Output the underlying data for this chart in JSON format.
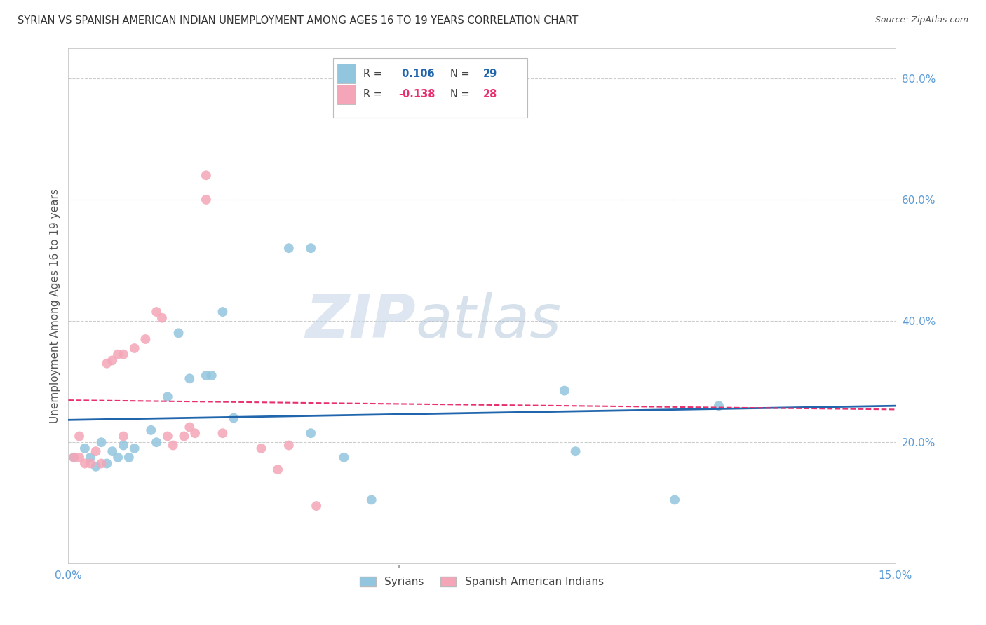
{
  "title": "SYRIAN VS SPANISH AMERICAN INDIAN UNEMPLOYMENT AMONG AGES 16 TO 19 YEARS CORRELATION CHART",
  "source": "Source: ZipAtlas.com",
  "ylabel": "Unemployment Among Ages 16 to 19 years",
  "xlim": [
    0.0,
    0.15
  ],
  "ylim": [
    0.0,
    0.85
  ],
  "yticks_right": [
    0.2,
    0.4,
    0.6,
    0.8
  ],
  "legend_syrians": "Syrians",
  "legend_spanish": "Spanish American Indians",
  "R_syrians": 0.106,
  "N_syrians": 29,
  "R_spanish": -0.138,
  "N_spanish": 28,
  "blue_color": "#92c5de",
  "blue_line_color": "#2166ac",
  "pink_color": "#f4a6b8",
  "pink_line_color": "#e8306e",
  "watermark_zip": "ZIP",
  "watermark_atlas": "atlas",
  "syrians_x": [
    0.001,
    0.003,
    0.004,
    0.005,
    0.006,
    0.007,
    0.008,
    0.009,
    0.01,
    0.011,
    0.012,
    0.015,
    0.016,
    0.018,
    0.02,
    0.022,
    0.025,
    0.026,
    0.028,
    0.03,
    0.04,
    0.044,
    0.044,
    0.05,
    0.055,
    0.09,
    0.092,
    0.11,
    0.118
  ],
  "syrians_y": [
    0.175,
    0.19,
    0.175,
    0.16,
    0.2,
    0.165,
    0.185,
    0.175,
    0.195,
    0.175,
    0.19,
    0.22,
    0.2,
    0.275,
    0.38,
    0.305,
    0.31,
    0.31,
    0.415,
    0.24,
    0.52,
    0.52,
    0.215,
    0.175,
    0.105,
    0.285,
    0.185,
    0.105,
    0.26
  ],
  "spanish_x": [
    0.001,
    0.002,
    0.002,
    0.003,
    0.004,
    0.005,
    0.006,
    0.007,
    0.008,
    0.009,
    0.01,
    0.01,
    0.012,
    0.014,
    0.016,
    0.017,
    0.018,
    0.019,
    0.021,
    0.022,
    0.023,
    0.025,
    0.025,
    0.028,
    0.035,
    0.038,
    0.04,
    0.045
  ],
  "spanish_y": [
    0.175,
    0.21,
    0.175,
    0.165,
    0.165,
    0.185,
    0.165,
    0.33,
    0.335,
    0.345,
    0.345,
    0.21,
    0.355,
    0.37,
    0.415,
    0.405,
    0.21,
    0.195,
    0.21,
    0.225,
    0.215,
    0.6,
    0.64,
    0.215,
    0.19,
    0.155,
    0.195,
    0.095
  ],
  "grid_color": "#cccccc",
  "background_color": "#ffffff",
  "title_fontsize": 10.5,
  "tick_label_color": "#5b9bd5",
  "ylabel_color": "#555555"
}
